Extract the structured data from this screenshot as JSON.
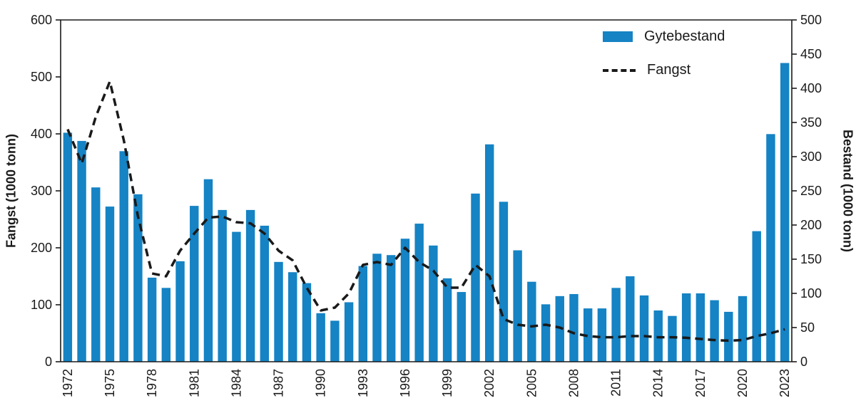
{
  "chart": {
    "left_axis_label": "Fangst (1000 tonn)",
    "right_axis_label": "Bestand (1000 tonn)",
    "legend": [
      {
        "label": "Gytebestand",
        "type": "bar",
        "color": "#1583c4"
      },
      {
        "label": "Fangst",
        "type": "dashed-line",
        "color": "#1a1a1a"
      }
    ]
  },
  "chart_data": {
    "type": "bar",
    "combo": "bar+line",
    "x": [
      1972,
      1973,
      1974,
      1975,
      1976,
      1977,
      1978,
      1979,
      1980,
      1981,
      1982,
      1983,
      1984,
      1985,
      1986,
      1987,
      1988,
      1989,
      1990,
      1991,
      1992,
      1993,
      1994,
      1995,
      1996,
      1997,
      1998,
      1999,
      2000,
      2001,
      2002,
      2003,
      2004,
      2005,
      2006,
      2007,
      2008,
      2009,
      2010,
      2011,
      2012,
      2013,
      2014,
      2015,
      2016,
      2017,
      2018,
      2019,
      2020,
      2021,
      2022,
      2023
    ],
    "series": [
      {
        "name": "Gytebestand",
        "type": "bar",
        "axis": "right",
        "color": "#1583c4",
        "values": [
          335,
          323,
          255,
          227,
          308,
          245,
          123,
          108,
          147,
          228,
          267,
          222,
          190,
          222,
          199,
          146,
          131,
          115,
          71,
          60,
          87,
          140,
          158,
          156,
          180,
          202,
          170,
          122,
          102,
          246,
          318,
          234,
          163,
          117,
          84,
          96,
          99,
          78,
          78,
          108,
          125,
          97,
          75,
          67,
          100,
          100,
          90,
          73,
          96,
          191,
          333,
          437
        ]
      },
      {
        "name": "Fangst",
        "type": "line",
        "style": "dashed",
        "axis": "left",
        "color": "#1a1a1a",
        "values": [
          408,
          348,
          430,
          492,
          388,
          255,
          155,
          150,
          195,
          225,
          253,
          255,
          245,
          243,
          225,
          195,
          178,
          130,
          90,
          95,
          120,
          170,
          175,
          170,
          200,
          175,
          160,
          130,
          130,
          170,
          150,
          75,
          65,
          62,
          65,
          60,
          50,
          45,
          43,
          43,
          45,
          45,
          43,
          43,
          42,
          40,
          38,
          37,
          38,
          45,
          50,
          57
        ]
      }
    ],
    "left_axis": {
      "label": "Fangst (1000 tonn)",
      "min": 0,
      "max": 600,
      "step": 100
    },
    "right_axis": {
      "label": "Bestand (1000 tonn)",
      "min": 0,
      "max": 500,
      "step": 50
    },
    "x_tick_years": [
      1972,
      1975,
      1978,
      1981,
      1984,
      1987,
      1990,
      1993,
      1996,
      1999,
      2002,
      2005,
      2008,
      2011,
      2014,
      2017,
      2020,
      2023
    ],
    "grid": false,
    "legend_position": "top-right"
  }
}
